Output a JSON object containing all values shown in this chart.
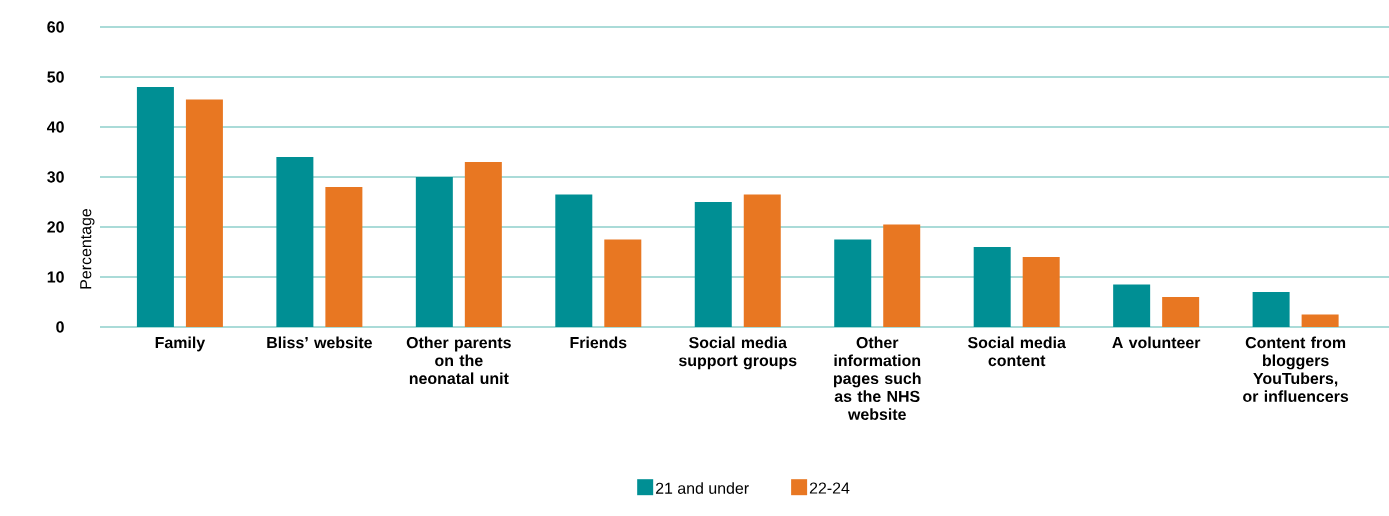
{
  "chart_data": {
    "type": "bar",
    "ylabel": "Percentage",
    "categories": [
      "Family",
      "Bliss’ website",
      "Other parents on the neonatal unit",
      "Friends",
      "Social media support groups",
      "Other information pages such as the NHS website",
      "Social media content",
      "A volunteer",
      "Content from bloggers YouTubers, or influencers"
    ],
    "series": [
      {
        "name": "21 and under",
        "color": "#008f94",
        "values": [
          48,
          34,
          30,
          26.5,
          25,
          17.5,
          16,
          8.5,
          7
        ]
      },
      {
        "name": "22-24",
        "color": "#e87722",
        "values": [
          45.5,
          28,
          33,
          17.5,
          26.5,
          20.5,
          14,
          6,
          2.5
        ]
      }
    ],
    "ylim": [
      0,
      60
    ],
    "yticks": [
      0,
      10,
      20,
      30,
      40,
      50,
      60
    ],
    "grid": "y",
    "legend": "bottom"
  }
}
